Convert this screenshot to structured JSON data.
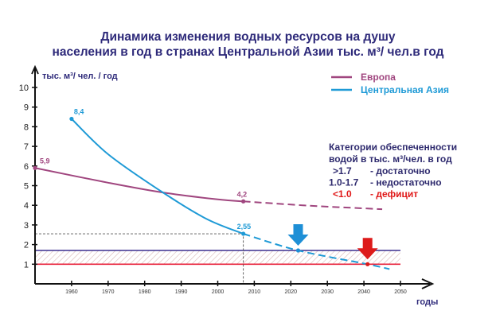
{
  "chart_data": {
    "type": "line",
    "title_lines": [
      "Динамика изменения водных ресурсов на душу",
      "населения в год в странах Центральной Азии тыс. м³/ чел.в год"
    ],
    "ylabel": "тыс. м³/ чел. / год",
    "xlabel": "годы",
    "xlim": [
      1950,
      2050
    ],
    "ylim": [
      0,
      10
    ],
    "x_ticks": [
      1960,
      1970,
      1980,
      1990,
      2000,
      2010,
      2020,
      2030,
      2040,
      2050
    ],
    "y_ticks": [
      1,
      2,
      3,
      4,
      5,
      6,
      7,
      8,
      9,
      10
    ],
    "grid": false,
    "legend_position": "top-right",
    "series": [
      {
        "name": "Европа",
        "color": "#a0467f",
        "actual": [
          [
            1950,
            5.9
          ],
          [
            1970,
            5.15
          ],
          [
            1985,
            4.65
          ],
          [
            2000,
            4.3
          ],
          [
            2007,
            4.2
          ]
        ],
        "forecast": [
          [
            2007,
            4.2
          ],
          [
            2025,
            3.98
          ],
          [
            2045,
            3.8
          ]
        ],
        "labels": [
          {
            "x": 1950,
            "y": 5.9,
            "text": "5,9"
          },
          {
            "x": 2007,
            "y": 4.2,
            "text": "4,2"
          }
        ]
      },
      {
        "name": "Центральная Азия",
        "color": "#1e9ad6",
        "actual": [
          [
            1960,
            8.4
          ],
          [
            1970,
            6.6
          ],
          [
            1985,
            4.65
          ],
          [
            1997,
            3.3
          ],
          [
            2007,
            2.55
          ]
        ],
        "forecast": [
          [
            2007,
            2.55
          ],
          [
            2022,
            1.7
          ],
          [
            2041,
            1.0
          ],
          [
            2047,
            0.75
          ]
        ],
        "labels": [
          {
            "x": 1960,
            "y": 8.4,
            "text": "8,4"
          },
          {
            "x": 2007,
            "y": 2.55,
            "text": "2,55"
          }
        ]
      }
    ],
    "thresholds": [
      {
        "value": 1.7,
        "color": "#3b2f8f"
      },
      {
        "value": 1.0,
        "color": "#e8203a"
      }
    ],
    "reference_point": {
      "x": 2007,
      "y": 2.55
    },
    "markers": [
      {
        "x": 2022,
        "y": 1.7,
        "color": "#1e8fd6"
      },
      {
        "x": 2041,
        "y": 1.0,
        "color": "#dd1a1a"
      }
    ],
    "categories_box": {
      "heading_lines": [
        "Категории обеспеченности",
        "водой в тыс. м³/чел. в год"
      ],
      "rows": [
        {
          "range": ">1.7",
          "label": "- достаточно",
          "color": "#2e2a6e"
        },
        {
          "range": "1.0-1.7",
          "label": "- недостаточно",
          "color": "#2e2a6e"
        },
        {
          "range": "<1.0",
          "label": "- дефицит",
          "color": "#e01818"
        }
      ]
    }
  }
}
